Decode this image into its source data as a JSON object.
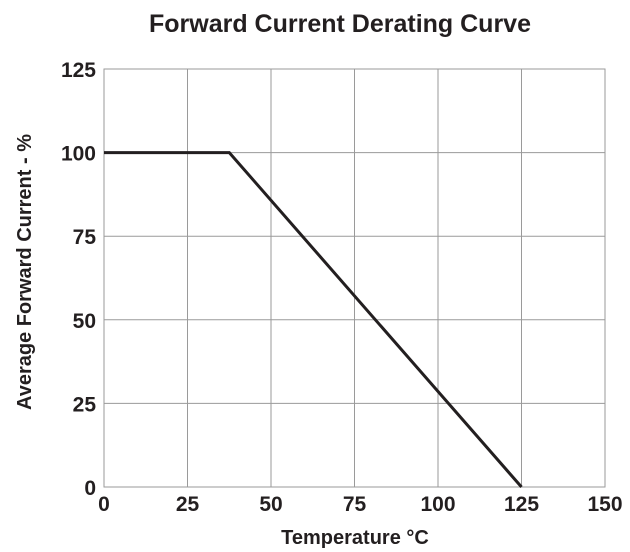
{
  "chart_data": {
    "type": "line",
    "title": "Forward Current Derating Curve",
    "xlabel": "Temperature °C",
    "ylabel": "Average Forward Current - %",
    "xlim": [
      0,
      150
    ],
    "ylim": [
      0,
      125
    ],
    "x_ticks": [
      "0",
      "25",
      "50",
      "75",
      "100",
      "125",
      "150"
    ],
    "y_ticks": [
      "0",
      "25",
      "50",
      "75",
      "100",
      "125"
    ],
    "grid": true,
    "series": [
      {
        "x": [
          0,
          37.5,
          125
        ],
        "y": [
          100,
          100,
          0
        ]
      }
    ],
    "colors": {
      "line": "#231f20",
      "grid": "#9a9a9a",
      "text": "#231f20"
    }
  }
}
